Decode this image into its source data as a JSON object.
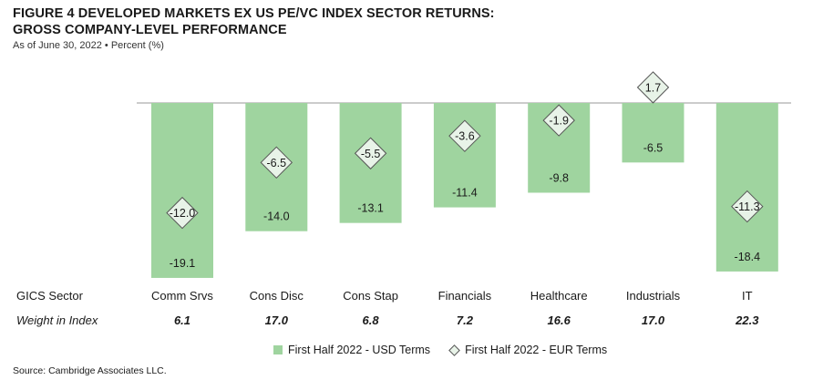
{
  "header": {
    "title_line1": "FIGURE 4  DEVELOPED MARKETS EX US PE/VC INDEX SECTOR RETURNS:",
    "title_line2": "GROSS COMPANY-LEVEL PERFORMANCE",
    "subtitle": "As of June 30, 2022 • Percent (%)"
  },
  "rows": {
    "sector_label": "GICS Sector",
    "weight_label": "Weight in Index"
  },
  "legend": {
    "usd": "First Half 2022 - USD Terms",
    "eur": "First Half 2022 - EUR Terms"
  },
  "source": "Source: Cambridge Associates LLC.",
  "chart_data": {
    "type": "bar",
    "categories": [
      "Comm Srvs",
      "Cons Disc",
      "Cons Stap",
      "Financials",
      "Healthcare",
      "Industrials",
      "IT"
    ],
    "weights": [
      "6.1",
      "17.0",
      "6.8",
      "7.2",
      "16.6",
      "17.0",
      "22.3"
    ],
    "series": [
      {
        "name": "First Half 2022 - USD Terms",
        "style": "bar",
        "color": "#9fd49f",
        "values": [
          -19.1,
          -14.0,
          -13.1,
          -11.4,
          -9.8,
          -6.5,
          -18.4
        ]
      },
      {
        "name": "First Half 2022 - EUR Terms",
        "style": "diamond",
        "color": "#e8f3e8",
        "values": [
          -12.0,
          -6.5,
          -5.5,
          -3.6,
          -1.9,
          1.7,
          -11.3
        ]
      }
    ],
    "value_labels_usd": [
      "-19.1",
      "-14.0",
      "-13.1",
      "-11.4",
      "-9.8",
      "-6.5",
      "-18.4"
    ],
    "value_labels_eur": [
      "-12.0",
      "-6.5",
      "-5.5",
      "-3.6",
      "-1.9",
      "1.7",
      "-11.3"
    ],
    "xlabel": "GICS Sector",
    "ylabel": "",
    "zero_line": true,
    "grid": false,
    "legend_position": "bottom"
  }
}
